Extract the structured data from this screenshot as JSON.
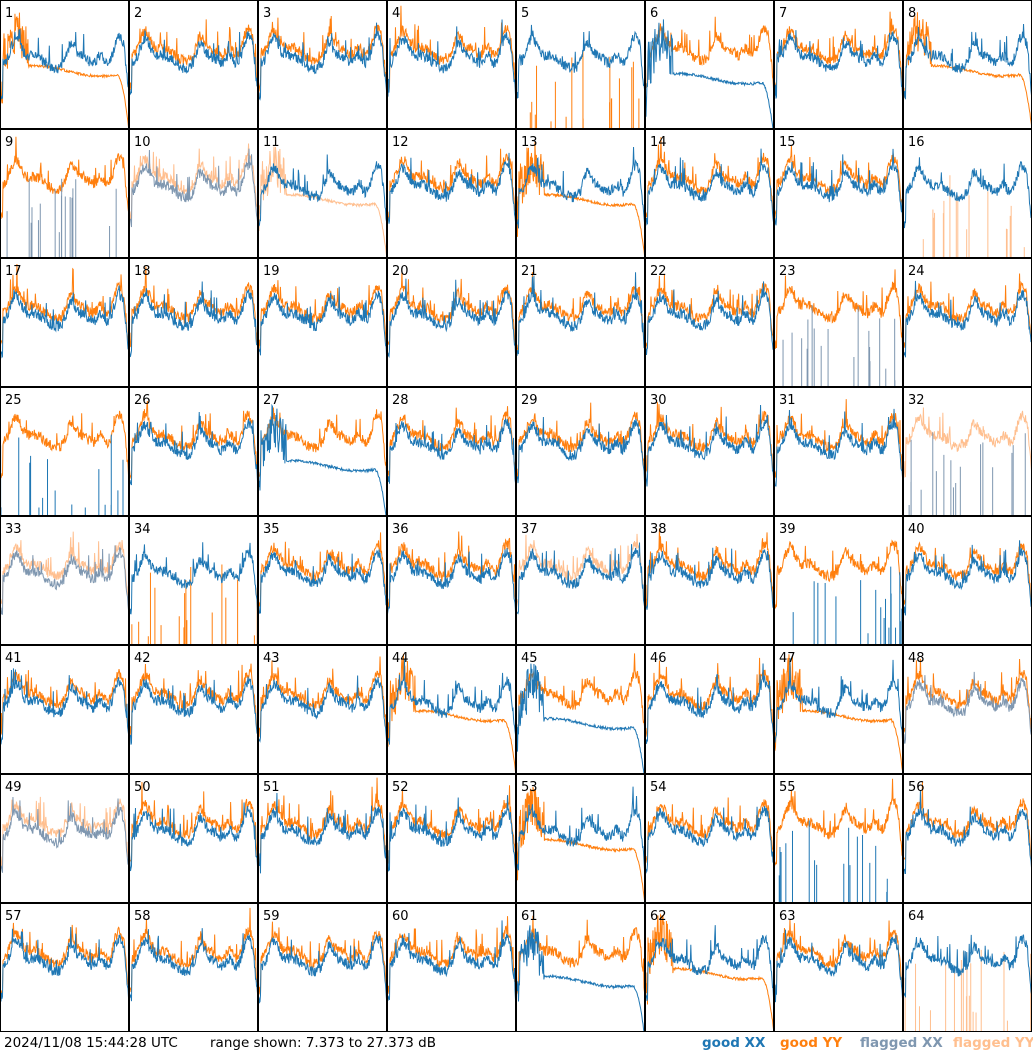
{
  "footer": {
    "timestamp": "2024/11/08 15:44:28 UTC",
    "range": "range shown: 7.373 to 27.373 dB"
  },
  "legend": [
    {
      "label": "good XX",
      "color": "#1f77b4"
    },
    {
      "label": "good YY",
      "color": "#ff7f0e"
    },
    {
      "label": "flagged XX",
      "color": "#7f97b0"
    },
    {
      "label": "flagged YY",
      "color": "#ffbf8f"
    }
  ],
  "chart_data": {
    "type": "line",
    "grid_rows": 8,
    "grid_cols": 8,
    "ylim": [
      7.373,
      27.373
    ],
    "y_unit": "dB",
    "panels": [
      {
        "label": "1",
        "xx": "good",
        "yy": "good",
        "xx_shape": "normal",
        "yy_shape": "drop"
      },
      {
        "label": "2",
        "xx": "good",
        "yy": "good",
        "xx_shape": "normal",
        "yy_shape": "normal"
      },
      {
        "label": "3",
        "xx": "good",
        "yy": "good",
        "xx_shape": "normal",
        "yy_shape": "normal"
      },
      {
        "label": "4",
        "xx": "good",
        "yy": "good",
        "xx_shape": "normal",
        "yy_shape": "normal"
      },
      {
        "label": "5",
        "xx": "good",
        "yy": "good",
        "xx_shape": "normal",
        "yy_shape": "spikes"
      },
      {
        "label": "6",
        "xx": "good",
        "yy": "good",
        "xx_shape": "drop",
        "yy_shape": "normal"
      },
      {
        "label": "7",
        "xx": "good",
        "yy": "good",
        "xx_shape": "normal",
        "yy_shape": "normal"
      },
      {
        "label": "8",
        "xx": "good",
        "yy": "good",
        "xx_shape": "normal",
        "yy_shape": "drop"
      },
      {
        "label": "9",
        "xx": "flagged",
        "yy": "good",
        "xx_shape": "spikes",
        "yy_shape": "normal"
      },
      {
        "label": "10",
        "xx": "flagged",
        "yy": "flagged",
        "xx_shape": "normal",
        "yy_shape": "normal"
      },
      {
        "label": "11",
        "xx": "good",
        "yy": "flagged",
        "xx_shape": "normal",
        "yy_shape": "drop"
      },
      {
        "label": "12",
        "xx": "good",
        "yy": "good",
        "xx_shape": "normal",
        "yy_shape": "normal"
      },
      {
        "label": "13",
        "xx": "good",
        "yy": "good",
        "xx_shape": "normal",
        "yy_shape": "drop"
      },
      {
        "label": "14",
        "xx": "good",
        "yy": "good",
        "xx_shape": "normal",
        "yy_shape": "normal"
      },
      {
        "label": "15",
        "xx": "good",
        "yy": "good",
        "xx_shape": "normal",
        "yy_shape": "normal"
      },
      {
        "label": "16",
        "xx": "good",
        "yy": "flagged",
        "xx_shape": "normal",
        "yy_shape": "spikes"
      },
      {
        "label": "17",
        "xx": "good",
        "yy": "good",
        "xx_shape": "normal",
        "yy_shape": "normal"
      },
      {
        "label": "18",
        "xx": "good",
        "yy": "good",
        "xx_shape": "normal",
        "yy_shape": "normal"
      },
      {
        "label": "19",
        "xx": "good",
        "yy": "good",
        "xx_shape": "normal",
        "yy_shape": "normal"
      },
      {
        "label": "20",
        "xx": "good",
        "yy": "good",
        "xx_shape": "normal",
        "yy_shape": "normal"
      },
      {
        "label": "21",
        "xx": "good",
        "yy": "good",
        "xx_shape": "normal",
        "yy_shape": "normal"
      },
      {
        "label": "22",
        "xx": "good",
        "yy": "good",
        "xx_shape": "normal",
        "yy_shape": "normal"
      },
      {
        "label": "23",
        "xx": "flagged",
        "yy": "good",
        "xx_shape": "spikes",
        "yy_shape": "normal"
      },
      {
        "label": "24",
        "xx": "good",
        "yy": "good",
        "xx_shape": "normal",
        "yy_shape": "normal"
      },
      {
        "label": "25",
        "xx": "good",
        "yy": "good",
        "xx_shape": "spikes",
        "yy_shape": "normal"
      },
      {
        "label": "26",
        "xx": "good",
        "yy": "good",
        "xx_shape": "normal",
        "yy_shape": "normal"
      },
      {
        "label": "27",
        "xx": "good",
        "yy": "good",
        "xx_shape": "drop",
        "yy_shape": "normal"
      },
      {
        "label": "28",
        "xx": "good",
        "yy": "good",
        "xx_shape": "normal",
        "yy_shape": "normal"
      },
      {
        "label": "29",
        "xx": "good",
        "yy": "good",
        "xx_shape": "normal",
        "yy_shape": "normal"
      },
      {
        "label": "30",
        "xx": "good",
        "yy": "good",
        "xx_shape": "normal",
        "yy_shape": "normal"
      },
      {
        "label": "31",
        "xx": "good",
        "yy": "good",
        "xx_shape": "normal",
        "yy_shape": "normal"
      },
      {
        "label": "32",
        "xx": "flagged",
        "yy": "flagged",
        "xx_shape": "spikes",
        "yy_shape": "normal"
      },
      {
        "label": "33",
        "xx": "flagged",
        "yy": "flagged",
        "xx_shape": "normal",
        "yy_shape": "normal"
      },
      {
        "label": "34",
        "xx": "good",
        "yy": "good",
        "xx_shape": "normal",
        "yy_shape": "spikes"
      },
      {
        "label": "35",
        "xx": "good",
        "yy": "good",
        "xx_shape": "normal",
        "yy_shape": "normal"
      },
      {
        "label": "36",
        "xx": "good",
        "yy": "good",
        "xx_shape": "normal",
        "yy_shape": "normal"
      },
      {
        "label": "37",
        "xx": "good",
        "yy": "flagged",
        "xx_shape": "normal",
        "yy_shape": "normal"
      },
      {
        "label": "38",
        "xx": "good",
        "yy": "good",
        "xx_shape": "normal",
        "yy_shape": "normal"
      },
      {
        "label": "39",
        "xx": "good",
        "yy": "good",
        "xx_shape": "spikes",
        "yy_shape": "normal"
      },
      {
        "label": "40",
        "xx": "good",
        "yy": "good",
        "xx_shape": "normal",
        "yy_shape": "normal"
      },
      {
        "label": "41",
        "xx": "good",
        "yy": "good",
        "xx_shape": "normal",
        "yy_shape": "normal"
      },
      {
        "label": "42",
        "xx": "good",
        "yy": "good",
        "xx_shape": "normal",
        "yy_shape": "normal"
      },
      {
        "label": "43",
        "xx": "good",
        "yy": "good",
        "xx_shape": "normal",
        "yy_shape": "normal"
      },
      {
        "label": "44",
        "xx": "good",
        "yy": "good",
        "xx_shape": "normal",
        "yy_shape": "drop"
      },
      {
        "label": "45",
        "xx": "good",
        "yy": "good",
        "xx_shape": "drop",
        "yy_shape": "normal"
      },
      {
        "label": "46",
        "xx": "good",
        "yy": "good",
        "xx_shape": "normal",
        "yy_shape": "normal"
      },
      {
        "label": "47",
        "xx": "good",
        "yy": "good",
        "xx_shape": "normal",
        "yy_shape": "drop"
      },
      {
        "label": "48",
        "xx": "flagged",
        "yy": "good",
        "xx_shape": "normal",
        "yy_shape": "normal"
      },
      {
        "label": "49",
        "xx": "flagged",
        "yy": "flagged",
        "xx_shape": "normal",
        "yy_shape": "normal"
      },
      {
        "label": "50",
        "xx": "good",
        "yy": "good",
        "xx_shape": "normal",
        "yy_shape": "normal"
      },
      {
        "label": "51",
        "xx": "good",
        "yy": "good",
        "xx_shape": "normal",
        "yy_shape": "normal"
      },
      {
        "label": "52",
        "xx": "good",
        "yy": "good",
        "xx_shape": "normal",
        "yy_shape": "normal"
      },
      {
        "label": "53",
        "xx": "good",
        "yy": "good",
        "xx_shape": "normal",
        "yy_shape": "drop"
      },
      {
        "label": "54",
        "xx": "good",
        "yy": "good",
        "xx_shape": "normal",
        "yy_shape": "normal"
      },
      {
        "label": "55",
        "xx": "good",
        "yy": "good",
        "xx_shape": "spikes",
        "yy_shape": "normal"
      },
      {
        "label": "56",
        "xx": "good",
        "yy": "good",
        "xx_shape": "normal",
        "yy_shape": "normal"
      },
      {
        "label": "57",
        "xx": "good",
        "yy": "good",
        "xx_shape": "normal",
        "yy_shape": "normal"
      },
      {
        "label": "58",
        "xx": "good",
        "yy": "good",
        "xx_shape": "normal",
        "yy_shape": "normal"
      },
      {
        "label": "59",
        "xx": "good",
        "yy": "good",
        "xx_shape": "normal",
        "yy_shape": "normal"
      },
      {
        "label": "60",
        "xx": "good",
        "yy": "good",
        "xx_shape": "normal",
        "yy_shape": "normal"
      },
      {
        "label": "61",
        "xx": "good",
        "yy": "good",
        "xx_shape": "drop",
        "yy_shape": "normal"
      },
      {
        "label": "62",
        "xx": "good",
        "yy": "good",
        "xx_shape": "normal",
        "yy_shape": "drop"
      },
      {
        "label": "63",
        "xx": "good",
        "yy": "good",
        "xx_shape": "normal",
        "yy_shape": "normal"
      },
      {
        "label": "64",
        "xx": "good",
        "yy": "flagged",
        "xx_shape": "normal",
        "yy_shape": "spikes"
      }
    ]
  }
}
